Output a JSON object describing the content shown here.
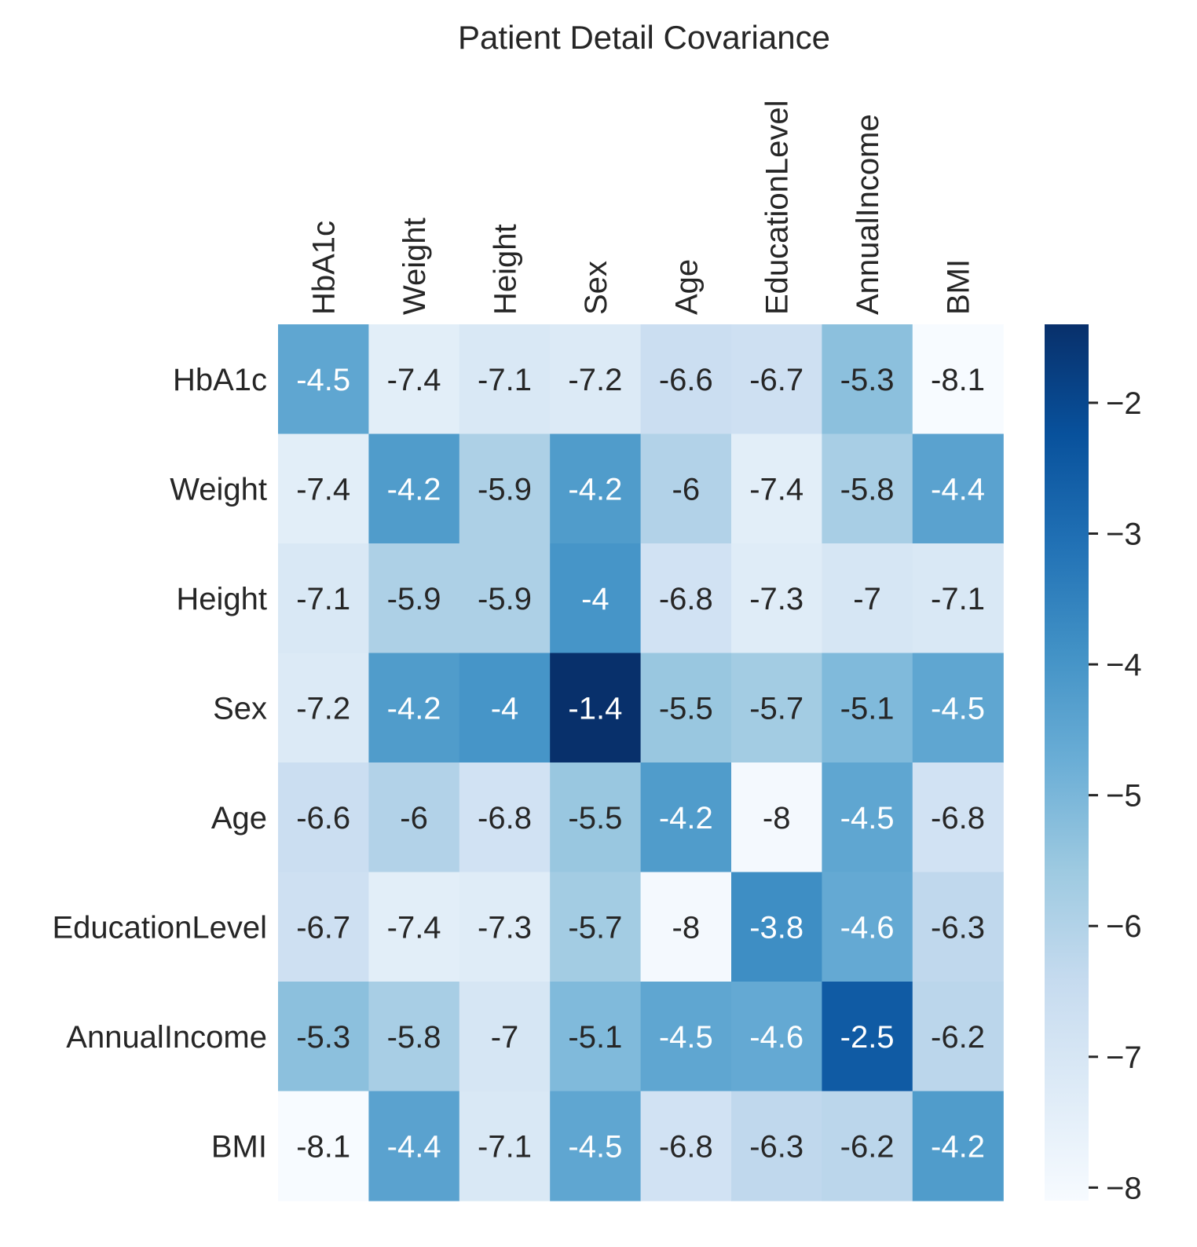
{
  "chart_data": {
    "type": "heatmap",
    "title": "Patient Detail Covariance",
    "xlabel": "",
    "ylabel": "",
    "x_categories": [
      "HbA1c",
      "Weight",
      "Height",
      "Sex",
      "Age",
      "EducationLevel",
      "AnnualIncome",
      "BMI"
    ],
    "y_categories": [
      "HbA1c",
      "Weight",
      "Height",
      "Sex",
      "Age",
      "EducationLevel",
      "AnnualIncome",
      "BMI"
    ],
    "values": [
      [
        -4.5,
        -7.4,
        -7.1,
        -7.2,
        -6.6,
        -6.7,
        -5.3,
        -8.1
      ],
      [
        -7.4,
        -4.2,
        -5.9,
        -4.2,
        -6.0,
        -7.4,
        -5.8,
        -4.4
      ],
      [
        -7.1,
        -5.9,
        -5.9,
        -4.0,
        -6.8,
        -7.3,
        -7.0,
        -7.1
      ],
      [
        -7.2,
        -4.2,
        -4.0,
        -1.4,
        -5.5,
        -5.7,
        -5.1,
        -4.5
      ],
      [
        -6.6,
        -6.0,
        -6.8,
        -5.5,
        -4.2,
        -8.0,
        -4.5,
        -6.8
      ],
      [
        -6.7,
        -7.4,
        -7.3,
        -5.7,
        -8.0,
        -3.8,
        -4.6,
        -6.3
      ],
      [
        -5.3,
        -5.8,
        -7.0,
        -5.1,
        -4.5,
        -4.6,
        -2.5,
        -6.2
      ],
      [
        -8.1,
        -4.4,
        -7.1,
        -4.5,
        -6.8,
        -6.3,
        -6.2,
        -4.2
      ]
    ],
    "annotations": [
      [
        "-4.5",
        "-7.4",
        "-7.1",
        "-7.2",
        "-6.6",
        "-6.7",
        "-5.3",
        "-8.1"
      ],
      [
        "-7.4",
        "-4.2",
        "-5.9",
        "-4.2",
        "-6",
        "-7.4",
        "-5.8",
        "-4.4"
      ],
      [
        "-7.1",
        "-5.9",
        "-5.9",
        "-4",
        "-6.8",
        "-7.3",
        "-7",
        "-7.1"
      ],
      [
        "-7.2",
        "-4.2",
        "-4",
        "-1.4",
        "-5.5",
        "-5.7",
        "-5.1",
        "-4.5"
      ],
      [
        "-6.6",
        "-6",
        "-6.8",
        "-5.5",
        "-4.2",
        "-8",
        "-4.5",
        "-6.8"
      ],
      [
        "-6.7",
        "-7.4",
        "-7.3",
        "-5.7",
        "-8",
        "-3.8",
        "-4.6",
        "-6.3"
      ],
      [
        "-5.3",
        "-5.8",
        "-7",
        "-5.1",
        "-4.5",
        "-4.6",
        "-2.5",
        "-6.2"
      ],
      [
        "-8.1",
        "-4.4",
        "-7.1",
        "-4.5",
        "-6.8",
        "-6.3",
        "-6.2",
        "-4.2"
      ]
    ],
    "colormap": "Blues",
    "color_range": [
      -8.1,
      -1.4
    ],
    "colorbar": {
      "ticks": [
        -2,
        -3,
        -4,
        -5,
        -6,
        -7,
        -8
      ],
      "tick_labels": [
        "−2",
        "−3",
        "−4",
        "−5",
        "−6",
        "−7",
        "−8"
      ]
    },
    "x_tick_position": "top",
    "x_tick_rotation": 90,
    "grid": false,
    "text_color_light": "#ffffff",
    "text_color_dark": "#262626"
  }
}
